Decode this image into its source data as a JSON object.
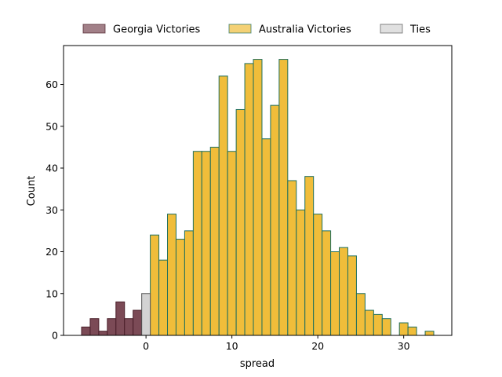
{
  "chart_data": {
    "type": "bar",
    "xlabel": "spread",
    "ylabel": "Count",
    "xlim": [
      -9.6,
      35.6
    ],
    "ylim": [
      0,
      69.3
    ],
    "xticks": [
      0,
      10,
      20,
      30
    ],
    "yticks": [
      0,
      10,
      20,
      30,
      40,
      50,
      60
    ],
    "legend_position": "top",
    "bin_width": 1,
    "series": [
      {
        "name": "Georgia Victories",
        "color": "#7b4a56",
        "edgecolor": "#4a1f2a",
        "bins": [
          {
            "x": -7,
            "count": 2
          },
          {
            "x": -6,
            "count": 4
          },
          {
            "x": -5,
            "count": 1
          },
          {
            "x": -4,
            "count": 4
          },
          {
            "x": -3,
            "count": 8
          },
          {
            "x": -2,
            "count": 4
          },
          {
            "x": -1,
            "count": 6
          }
        ]
      },
      {
        "name": "Australia Victories",
        "color": "#f0bd3a",
        "edgecolor": "#1f6f5e",
        "bins": [
          {
            "x": 1,
            "count": 24
          },
          {
            "x": 2,
            "count": 18
          },
          {
            "x": 3,
            "count": 29
          },
          {
            "x": 4,
            "count": 23
          },
          {
            "x": 5,
            "count": 25
          },
          {
            "x": 6,
            "count": 44
          },
          {
            "x": 7,
            "count": 44
          },
          {
            "x": 8,
            "count": 45
          },
          {
            "x": 9,
            "count": 62
          },
          {
            "x": 10,
            "count": 44
          },
          {
            "x": 11,
            "count": 54
          },
          {
            "x": 12,
            "count": 65
          },
          {
            "x": 13,
            "count": 66
          },
          {
            "x": 14,
            "count": 47
          },
          {
            "x": 15,
            "count": 55
          },
          {
            "x": 16,
            "count": 66
          },
          {
            "x": 17,
            "count": 37
          },
          {
            "x": 18,
            "count": 30
          },
          {
            "x": 19,
            "count": 38
          },
          {
            "x": 20,
            "count": 29
          },
          {
            "x": 21,
            "count": 25
          },
          {
            "x": 22,
            "count": 20
          },
          {
            "x": 23,
            "count": 21
          },
          {
            "x": 24,
            "count": 19
          },
          {
            "x": 25,
            "count": 10
          },
          {
            "x": 26,
            "count": 6
          },
          {
            "x": 27,
            "count": 5
          },
          {
            "x": 28,
            "count": 4
          },
          {
            "x": 30,
            "count": 3
          },
          {
            "x": 31,
            "count": 2
          },
          {
            "x": 33,
            "count": 1
          }
        ]
      },
      {
        "name": "Ties",
        "color": "#d3d3d3",
        "edgecolor": "#555555",
        "bins": [
          {
            "x": 0,
            "count": 10
          }
        ]
      }
    ]
  }
}
